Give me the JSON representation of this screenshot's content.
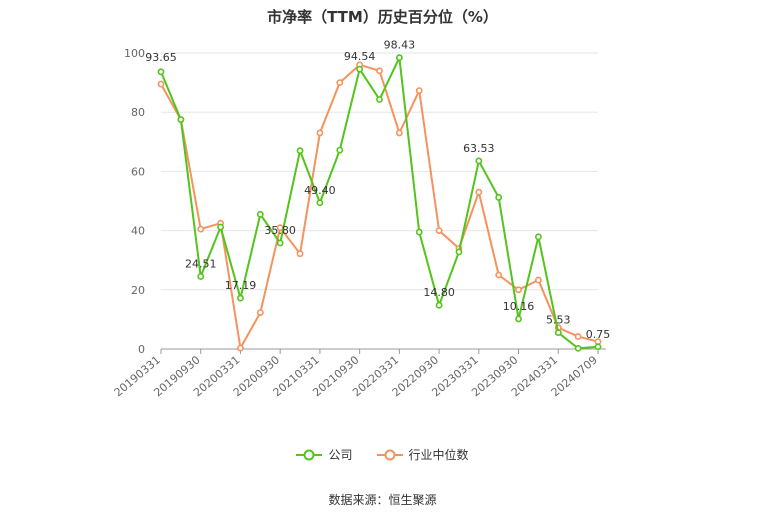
{
  "chart_data": {
    "type": "line",
    "title": "市净率（TTM）历史百分位（%）",
    "xlabel": "",
    "ylabel": "",
    "ylim": [
      0,
      100
    ],
    "yticks": [
      "0",
      "20",
      "40",
      "60",
      "80",
      "100"
    ],
    "x_tick_labels": [
      "20190331",
      "20190930",
      "20200331",
      "20200930",
      "20210331",
      "20210930",
      "20220331",
      "20220930",
      "20230331",
      "20230930",
      "20240331",
      "20240709"
    ],
    "x_tick_indices": [
      0,
      2,
      4,
      6,
      8,
      10,
      12,
      14,
      16,
      18,
      20,
      22
    ],
    "grid": true,
    "legend_position": "bottom",
    "series": [
      {
        "name": "公司",
        "color": "#52c41a",
        "values": [
          93.65,
          77.5,
          24.51,
          41.2,
          17.19,
          45.5,
          35.8,
          67.0,
          49.4,
          67.2,
          94.54,
          84.3,
          98.43,
          39.5,
          14.8,
          32.8,
          63.53,
          51.2,
          10.16,
          37.9,
          5.53,
          0.2,
          0.75
        ]
      },
      {
        "name": "行业中位数",
        "color": "#f5925e",
        "values": [
          89.5,
          77.5,
          40.5,
          42.5,
          0.3,
          12.3,
          41.0,
          32.2,
          73.0,
          90.0,
          96.0,
          94.0,
          73.0,
          87.3,
          40.0,
          34.0,
          53.0,
          25.0,
          20.0,
          23.3,
          7.2,
          4.2,
          2.5
        ]
      }
    ],
    "annotations": [
      {
        "index": 0,
        "text": "93.65"
      },
      {
        "index": 2,
        "text": "24.51"
      },
      {
        "index": 4,
        "text": "17.19"
      },
      {
        "index": 6,
        "text": "35.80"
      },
      {
        "index": 8,
        "text": "49.40"
      },
      {
        "index": 10,
        "text": "94.54"
      },
      {
        "index": 12,
        "text": "98.43"
      },
      {
        "index": 14,
        "text": "14.80"
      },
      {
        "index": 16,
        "text": "63.53"
      },
      {
        "index": 18,
        "text": "10.16"
      },
      {
        "index": 20,
        "text": "5.53"
      },
      {
        "index": 22,
        "text": "0.75"
      }
    ]
  },
  "source": "数据来源：恒生聚源"
}
